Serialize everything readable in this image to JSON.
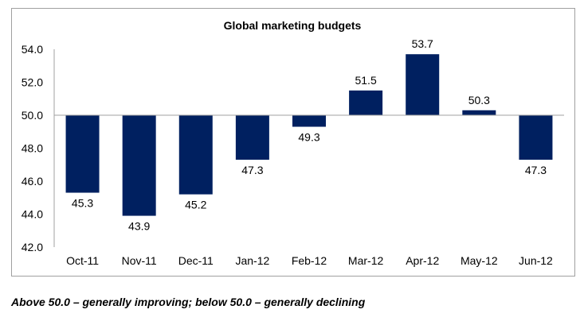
{
  "chart_data": {
    "type": "bar",
    "title": "Global marketing budgets",
    "categories": [
      "Oct-11",
      "Nov-11",
      "Dec-11",
      "Jan-12",
      "Feb-12",
      "Mar-12",
      "Apr-12",
      "May-12",
      "Jun-12"
    ],
    "values": [
      45.3,
      43.9,
      45.2,
      47.3,
      49.3,
      51.5,
      53.7,
      50.3,
      47.3
    ],
    "data_labels": [
      "45.3",
      "43.9",
      "45.2",
      "47.3",
      "49.3",
      "51.5",
      "53.7",
      "50.3",
      "47.3"
    ],
    "baseline": 50.0,
    "ylim": [
      42.0,
      54.0
    ],
    "yticks": [
      "42.0",
      "44.0",
      "46.0",
      "48.0",
      "50.0",
      "52.0",
      "54.0"
    ],
    "xlabel": "",
    "ylabel": "",
    "grid": false,
    "bar_color": "#002060"
  },
  "caption": "Above 50.0 – generally improving; below 50.0 – generally declining"
}
